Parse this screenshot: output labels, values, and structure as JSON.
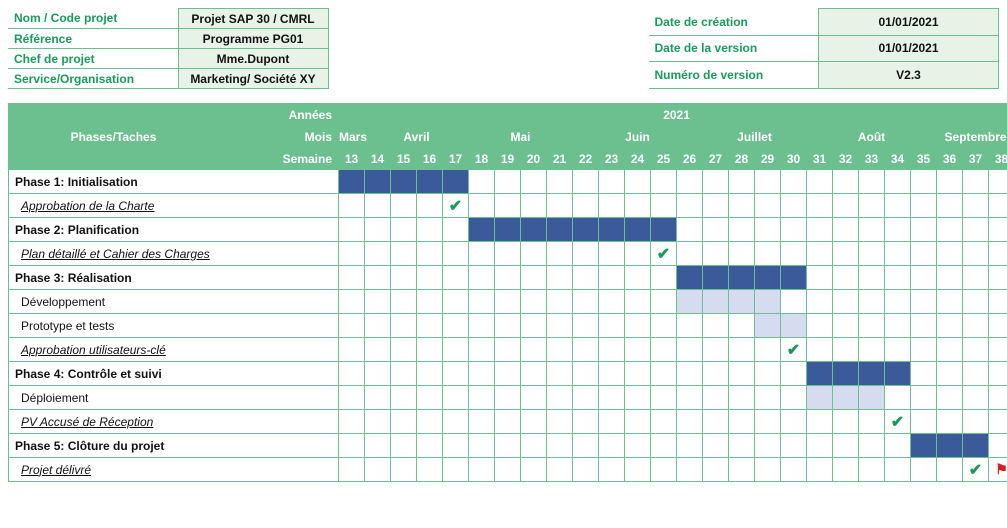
{
  "info": {
    "left": [
      {
        "label": "Nom / Code projet",
        "value": "Projet SAP 30 / CMRL"
      },
      {
        "label": "Référence",
        "value": "Programme PG01"
      },
      {
        "label": "Chef de projet",
        "value": "Mme.Dupont"
      },
      {
        "label": "Service/Organisation",
        "value": "Marketing/ Société XY"
      }
    ],
    "right": [
      {
        "label": "Date de création",
        "value": "01/01/2021"
      },
      {
        "label": "Date de la version",
        "value": "01/01/2021"
      },
      {
        "label": "Numéro de version",
        "value": "V2.3"
      }
    ]
  },
  "gantt": {
    "row_header": "Phases/Taches",
    "side_labels": {
      "year": "Années",
      "month": "Mois",
      "week": "Semaine"
    },
    "year": "2021",
    "months": [
      {
        "label": "Mars",
        "span": 1
      },
      {
        "label": "Avril",
        "span": 4
      },
      {
        "label": "Mai",
        "span": 4
      },
      {
        "label": "Juin",
        "span": 5
      },
      {
        "label": "Juillet",
        "span": 4
      },
      {
        "label": "Août",
        "span": 5
      },
      {
        "label": "Septembre",
        "span": 3
      }
    ],
    "weeks": [
      13,
      14,
      15,
      16,
      17,
      18,
      19,
      20,
      21,
      22,
      23,
      24,
      25,
      26,
      27,
      28,
      29,
      30,
      31,
      32,
      33,
      34,
      35,
      36,
      37,
      38
    ],
    "colors": {
      "header_bg": "#6cbf8e",
      "border": "#6cbf8e",
      "bar_dark": "#3a5a9a",
      "bar_light": "#d6dcf0",
      "check": "#1a9b5b",
      "flag": "#d62020"
    },
    "rows": [
      {
        "name": "Phase 1: Initialisation",
        "type": "phase",
        "bars": [
          {
            "start": 13,
            "end": 17,
            "style": "dark"
          }
        ]
      },
      {
        "name": "Approbation de la Charte",
        "type": "milestone",
        "marks": [
          {
            "week": 17,
            "kind": "check"
          }
        ]
      },
      {
        "name": "Phase 2: Planification",
        "type": "phase",
        "bars": [
          {
            "start": 18,
            "end": 25,
            "style": "dark"
          }
        ]
      },
      {
        "name": "Plan détaillé et Cahier des Charges",
        "type": "milestone",
        "marks": [
          {
            "week": 25,
            "kind": "check"
          }
        ]
      },
      {
        "name": "Phase 3: Réalisation",
        "type": "phase",
        "bars": [
          {
            "start": 26,
            "end": 30,
            "style": "dark"
          }
        ]
      },
      {
        "name": "Développement",
        "type": "sub",
        "bars": [
          {
            "start": 26,
            "end": 29,
            "style": "light"
          }
        ]
      },
      {
        "name": "Prototype et tests",
        "type": "sub",
        "bars": [
          {
            "start": 29,
            "end": 30,
            "style": "light"
          }
        ]
      },
      {
        "name": "Approbation utilisateurs-clé",
        "type": "milestone",
        "marks": [
          {
            "week": 30,
            "kind": "check"
          }
        ]
      },
      {
        "name": "Phase 4: Contrôle et suivi",
        "type": "phase",
        "bars": [
          {
            "start": 31,
            "end": 34,
            "style": "dark"
          }
        ]
      },
      {
        "name": "Déploiement",
        "type": "sub",
        "bars": [
          {
            "start": 31,
            "end": 33,
            "style": "light"
          }
        ]
      },
      {
        "name": "PV Accusé de Réception",
        "type": "milestone",
        "marks": [
          {
            "week": 34,
            "kind": "check"
          }
        ]
      },
      {
        "name": "Phase 5: Clôture du projet",
        "type": "phase",
        "bars": [
          {
            "start": 35,
            "end": 37,
            "style": "dark"
          }
        ]
      },
      {
        "name": "Projet délivré",
        "type": "milestone",
        "marks": [
          {
            "week": 37,
            "kind": "check"
          },
          {
            "week": 38,
            "kind": "flag"
          }
        ]
      }
    ]
  }
}
